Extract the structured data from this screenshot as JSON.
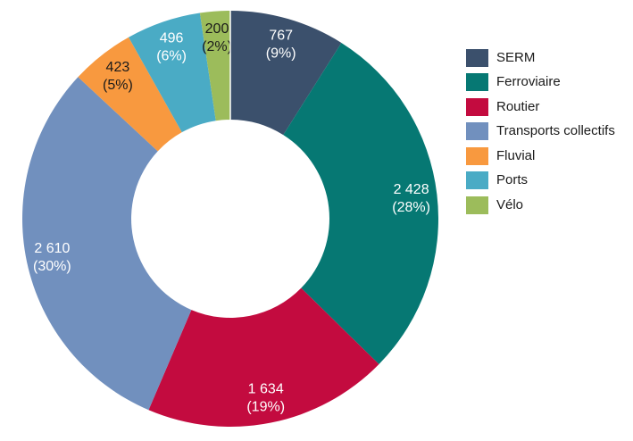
{
  "page": {
    "background_color": "#FFFFFF"
  },
  "chart_data": {
    "type": "pie",
    "subtype": "donut",
    "title": "",
    "legend_position": "right",
    "direction": "clockwise",
    "start_angle_deg": 0,
    "donut_hole_ratio": 0.476,
    "total": 8558,
    "categories": [
      "SERM",
      "Ferroviaire",
      "Routier",
      "Transports collectifs",
      "Fluvial",
      "Ports",
      "Vélo"
    ],
    "values": [
      767,
      2428,
      1634,
      2610,
      423,
      496,
      200
    ],
    "series": [
      {
        "label": "SERM",
        "value": 767,
        "value_label": "767",
        "pct_label": "(9%)",
        "color": "#3B506C",
        "label_text_color": "#FFFFFF"
      },
      {
        "label": "Ferroviaire",
        "value": 2428,
        "value_label": "2 428",
        "pct_label": "(28%)",
        "color": "#067873",
        "label_text_color": "#FFFFFF"
      },
      {
        "label": "Routier",
        "value": 1634,
        "value_label": "1 634",
        "pct_label": "(19%)",
        "color": "#C30B3F",
        "label_text_color": "#FFFFFF"
      },
      {
        "label": "Transports collectifs",
        "value": 2610,
        "value_label": "2 610",
        "pct_label": "(30%)",
        "color": "#7190BE",
        "label_text_color": "#FFFFFF"
      },
      {
        "label": "Fluvial",
        "value": 423,
        "value_label": "423",
        "pct_label": "(5%)",
        "color": "#F8993F",
        "label_text_color": "#1A1A1A"
      },
      {
        "label": "Ports",
        "value": 496,
        "value_label": "496",
        "pct_label": "(6%)",
        "color": "#4AABC5",
        "label_text_color": "#FFFFFF"
      },
      {
        "label": "Vélo",
        "value": 200,
        "value_label": "200",
        "pct_label": "(2%)",
        "color": "#9CBC5B",
        "label_text_color": "#1A1A1A"
      }
    ]
  }
}
